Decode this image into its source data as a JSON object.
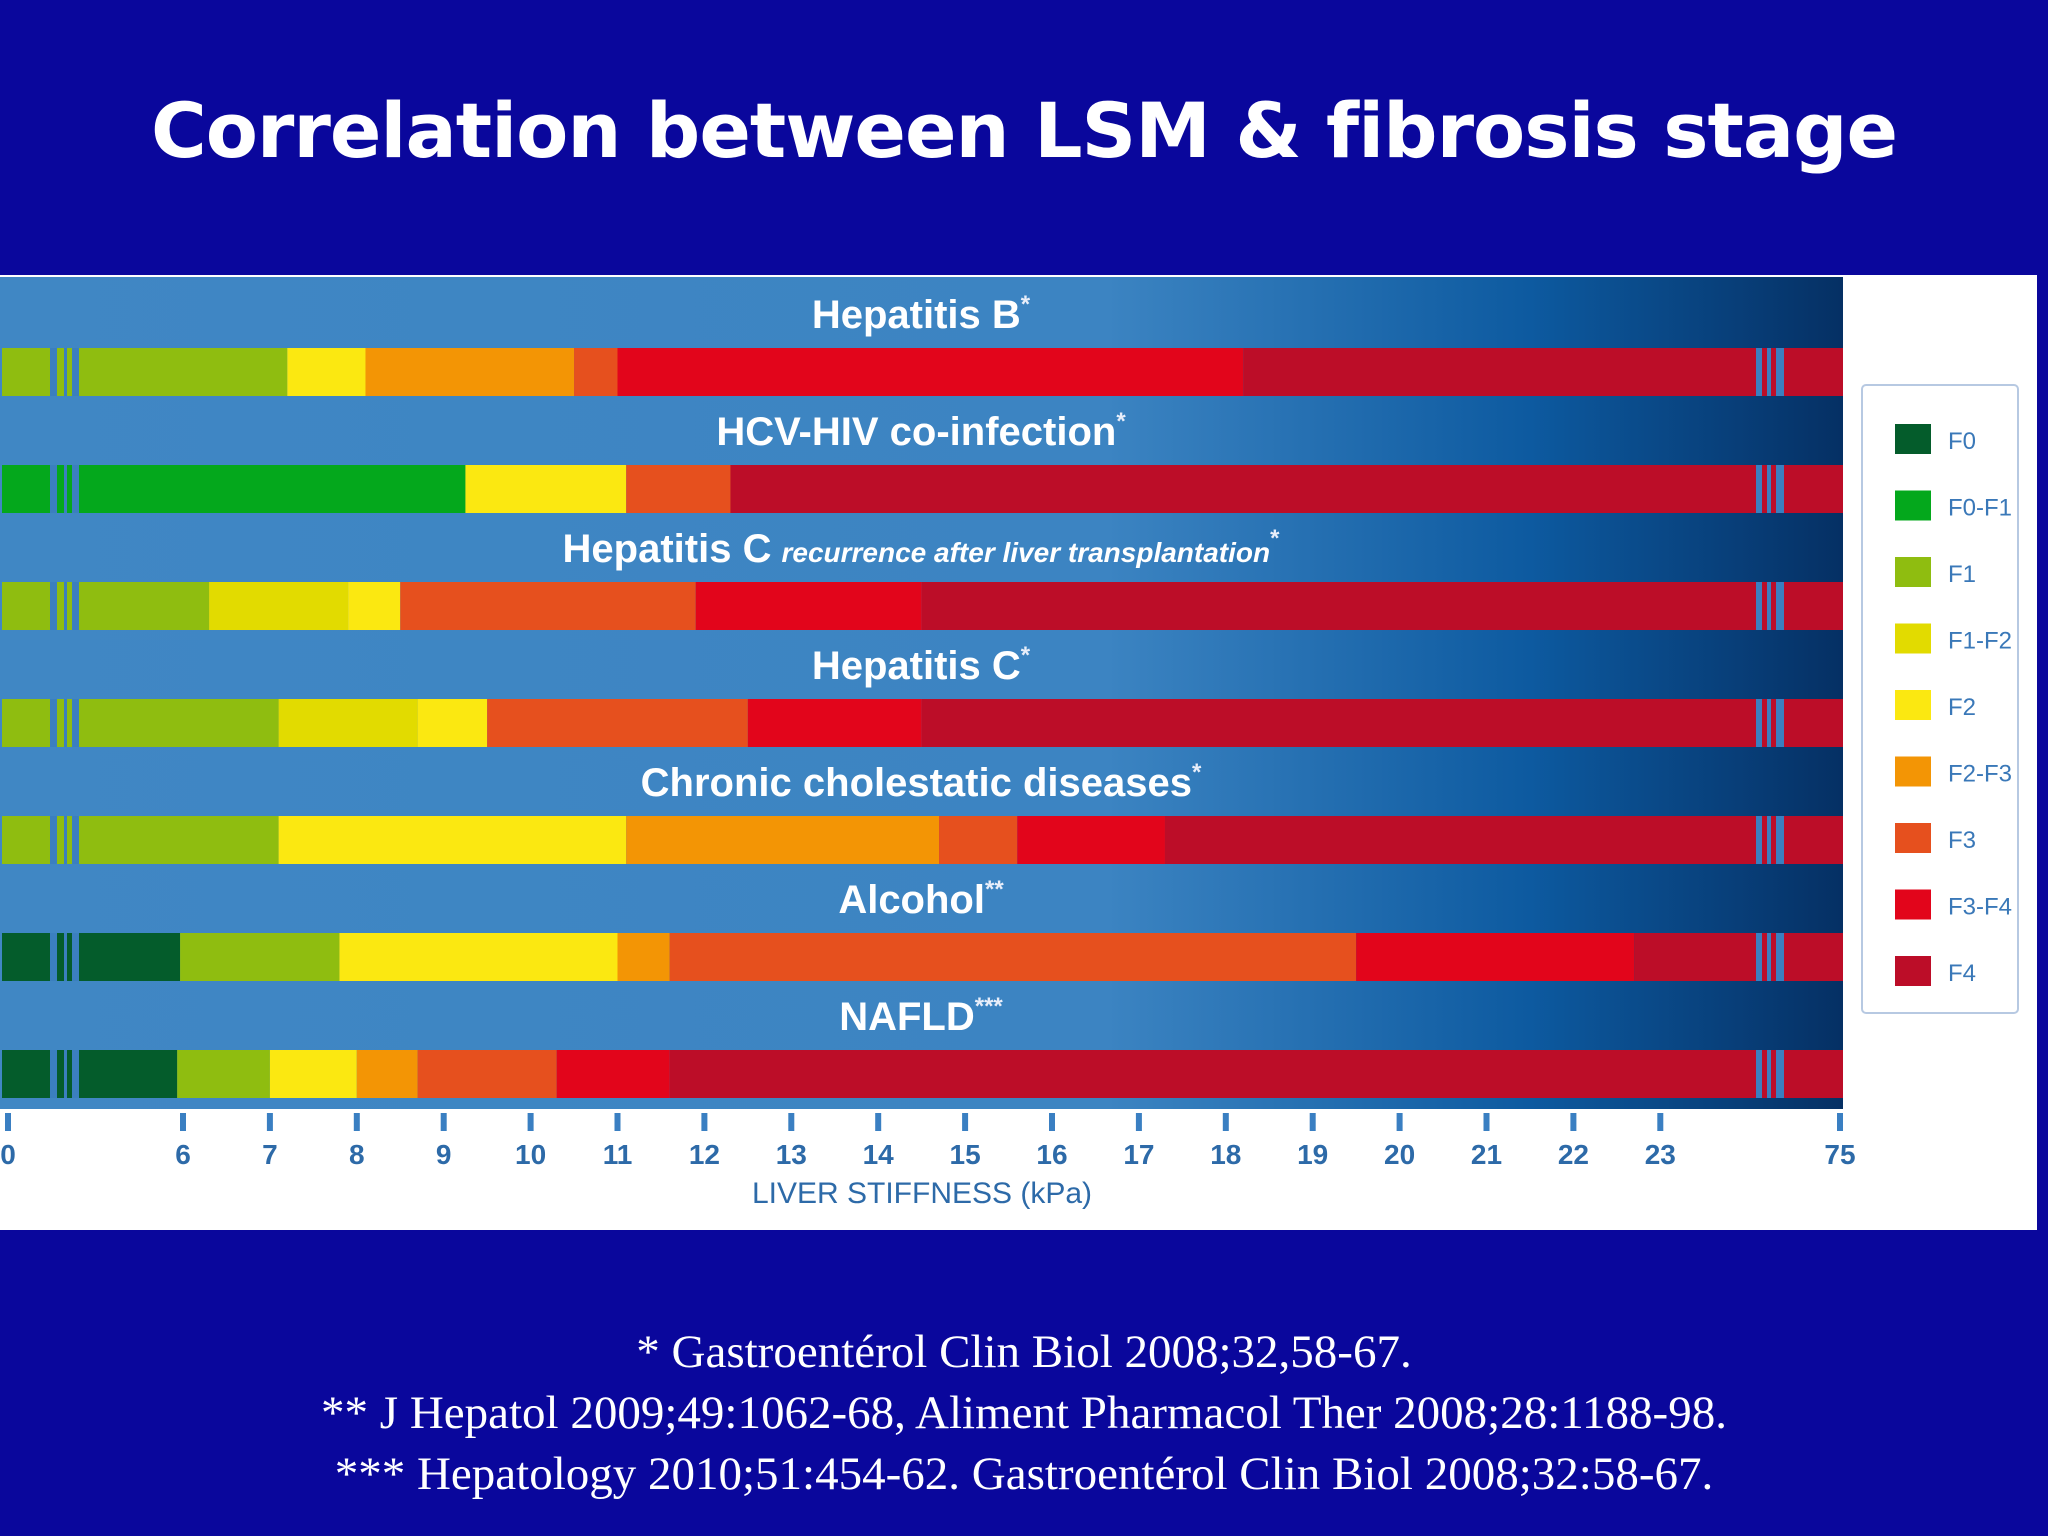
{
  "slide": {
    "title": "Correlation between LSM & fibrosis stage",
    "references": [
      "*  Gastroentérol Clin Biol 2008;32,58-67.",
      "** J Hepatol 2009;49:1062-68, Aliment Pharmacol Ther 2008;28:1188-98.",
      "*** Hepatology 2010;51:454-62. Gastroentérol Clin Biol 2008;32:58-67."
    ]
  },
  "chart_data": {
    "type": "bar",
    "orientation": "horizontal-stacked-ranges",
    "xlabel": "LIVER STIFFNESS (kPa)",
    "ylabel": "",
    "xlim": [
      0,
      75
    ],
    "axis_break": "between 23 and 75; also between 0 and 6",
    "ticks": [
      0,
      6,
      7,
      8,
      9,
      10,
      11,
      12,
      13,
      14,
      15,
      16,
      17,
      18,
      19,
      20,
      21,
      22,
      23,
      75
    ],
    "grid": false,
    "legend_position": "right",
    "stages": [
      {
        "name": "F0",
        "color": "#045c2b"
      },
      {
        "name": "F0-F1",
        "color": "#04a81c"
      },
      {
        "name": "F1",
        "color": "#8fbd10"
      },
      {
        "name": "F1-F2",
        "color": "#e2db00"
      },
      {
        "name": "F2",
        "color": "#fbe811"
      },
      {
        "name": "F2-F3",
        "color": "#f39505"
      },
      {
        "name": "F3",
        "color": "#e6501e"
      },
      {
        "name": "F3-F4",
        "color": "#e2051b"
      },
      {
        "name": "F4",
        "color": "#bc0d28"
      }
    ],
    "series": [
      {
        "name": "Hepatitis B",
        "mark": "*",
        "note": "",
        "segments": [
          {
            "stage": "F1",
            "from": 0,
            "to": 7.2
          },
          {
            "stage": "F2",
            "from": 7.2,
            "to": 8.1
          },
          {
            "stage": "F2-F3",
            "from": 8.1,
            "to": 10.5
          },
          {
            "stage": "F3",
            "from": 10.5,
            "to": 11.0
          },
          {
            "stage": "F3-F4",
            "from": 11.0,
            "to": 18.2
          },
          {
            "stage": "F4",
            "from": 18.2,
            "to": 75
          }
        ]
      },
      {
        "name": "HCV-HIV co-infection",
        "mark": "*",
        "note": "",
        "segments": [
          {
            "stage": "F0-F1",
            "from": 0,
            "to": 9.25
          },
          {
            "stage": "F2",
            "from": 9.25,
            "to": 11.1
          },
          {
            "stage": "F3",
            "from": 11.1,
            "to": 12.3
          },
          {
            "stage": "F4",
            "from": 12.3,
            "to": 75
          }
        ]
      },
      {
        "name": "Hepatitis C",
        "mark": "*",
        "note": "recurrence after liver transplantation",
        "segments": [
          {
            "stage": "F1",
            "from": 0,
            "to": 6.3
          },
          {
            "stage": "F1-F2",
            "from": 6.3,
            "to": 7.9
          },
          {
            "stage": "F2",
            "from": 7.9,
            "to": 8.5
          },
          {
            "stage": "F3",
            "from": 8.5,
            "to": 11.9
          },
          {
            "stage": "F3-F4",
            "from": 11.9,
            "to": 14.5
          },
          {
            "stage": "F4",
            "from": 14.5,
            "to": 75
          }
        ]
      },
      {
        "name": "Hepatitis C",
        "mark": "*",
        "note": "",
        "segments": [
          {
            "stage": "F1",
            "from": 0,
            "to": 7.1
          },
          {
            "stage": "F1-F2",
            "from": 7.1,
            "to": 8.7
          },
          {
            "stage": "F2",
            "from": 8.7,
            "to": 9.5
          },
          {
            "stage": "F3",
            "from": 9.5,
            "to": 12.5
          },
          {
            "stage": "F3-F4",
            "from": 12.5,
            "to": 14.5
          },
          {
            "stage": "F4",
            "from": 14.5,
            "to": 75
          }
        ]
      },
      {
        "name": "Chronic cholestatic diseases",
        "mark": "*",
        "note": "",
        "segments": [
          {
            "stage": "F1",
            "from": 0,
            "to": 7.1
          },
          {
            "stage": "F2",
            "from": 7.1,
            "to": 11.1
          },
          {
            "stage": "F2-F3",
            "from": 11.1,
            "to": 14.7
          },
          {
            "stage": "F3",
            "from": 14.7,
            "to": 15.6
          },
          {
            "stage": "F3-F4",
            "from": 15.6,
            "to": 17.3
          },
          {
            "stage": "F4",
            "from": 17.3,
            "to": 75
          }
        ]
      },
      {
        "name": "Alcohol",
        "mark": "**",
        "note": "",
        "segments": [
          {
            "stage": "F0",
            "from": 0,
            "to": 5.9
          },
          {
            "stage": "F1",
            "from": 5.9,
            "to": 7.8
          },
          {
            "stage": "F2",
            "from": 7.8,
            "to": 11.0
          },
          {
            "stage": "F2-F3",
            "from": 11.0,
            "to": 11.6
          },
          {
            "stage": "F3",
            "from": 11.6,
            "to": 19.5
          },
          {
            "stage": "F3-F4",
            "from": 19.5,
            "to": 22.7
          },
          {
            "stage": "F4",
            "from": 22.7,
            "to": 75
          }
        ]
      },
      {
        "name": "NAFLD",
        "mark": "***",
        "note": "",
        "segments": [
          {
            "stage": "F0",
            "from": 0,
            "to": 5.8
          },
          {
            "stage": "F1",
            "from": 5.8,
            "to": 7.0
          },
          {
            "stage": "F2",
            "from": 7.0,
            "to": 8.0
          },
          {
            "stage": "F2-F3",
            "from": 8.0,
            "to": 8.7
          },
          {
            "stage": "F3",
            "from": 8.7,
            "to": 10.3
          },
          {
            "stage": "F3-F4",
            "from": 10.3,
            "to": 11.6
          },
          {
            "stage": "F4",
            "from": 11.6,
            "to": 75
          }
        ]
      }
    ]
  }
}
